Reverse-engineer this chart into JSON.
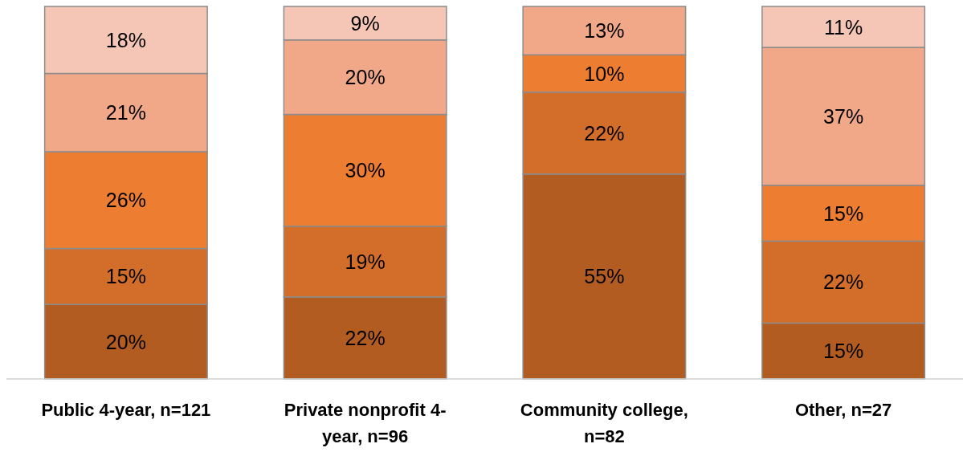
{
  "chart_data": {
    "type": "bar",
    "stacked": true,
    "categories": [
      "Public 4-year, n=121",
      "Private nonprofit 4-year, n=96",
      "Community college, n=82",
      "Other, n=27"
    ],
    "ylim": [
      0,
      100
    ],
    "tick_labels": "x",
    "series": [
      {
        "color": "#b35c22",
        "values": [
          20,
          22,
          55,
          15
        ],
        "value_labels": [
          "20%",
          "22%",
          "55%",
          "15%"
        ]
      },
      {
        "color": "#d36e2a",
        "values": [
          15,
          19,
          22,
          22
        ],
        "value_labels": [
          "15%",
          "19%",
          "22%",
          "22%"
        ]
      },
      {
        "color": "#ed7d31",
        "values": [
          26,
          30,
          10,
          15
        ],
        "value_labels": [
          "26%",
          "30%",
          "10%",
          "15%"
        ]
      },
      {
        "color": "#f0a889",
        "values": [
          21,
          20,
          13,
          37
        ],
        "value_labels": [
          "21%",
          "20%",
          "13%",
          "37%"
        ]
      },
      {
        "color": "#f5c6b5",
        "values": [
          18,
          9,
          null,
          11
        ],
        "value_labels": [
          "18%",
          "9%",
          null,
          "11%"
        ]
      }
    ]
  }
}
